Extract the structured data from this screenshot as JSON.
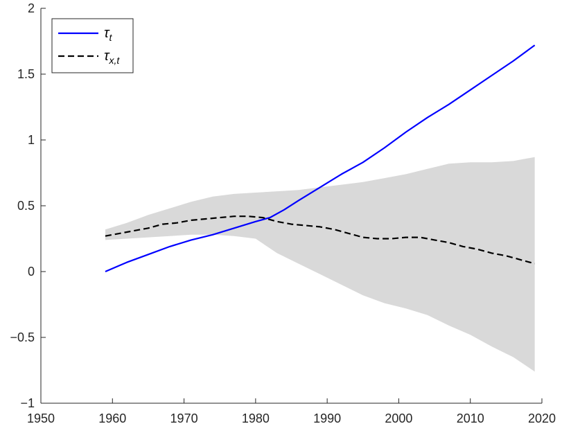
{
  "chart_data": {
    "type": "line",
    "title": "",
    "xlabel": "",
    "ylabel": "",
    "xlim": [
      1950,
      2020
    ],
    "ylim": [
      -1,
      2
    ],
    "grid": false,
    "legend_position": "top-left",
    "x_ticks": [
      1950,
      1960,
      1970,
      1980,
      1990,
      2000,
      2010,
      2020
    ],
    "x_tick_labels": [
      "1950",
      "1960",
      "1970",
      "1980",
      "1990",
      "2000",
      "2010",
      "2020"
    ],
    "y_ticks": [
      -1,
      -0.5,
      0,
      0.5,
      1,
      1.5,
      2
    ],
    "y_tick_labels": [
      "−1",
      "−0.5",
      "0",
      "0.5",
      "1",
      "1.5",
      "2"
    ],
    "series": [
      {
        "name": "τt",
        "name_main": "τ",
        "name_sub": "t",
        "color": "#0000ff",
        "style": "solid",
        "x": [
          1959,
          1962,
          1965,
          1968,
          1971,
          1974,
          1977,
          1980,
          1982,
          1984,
          1986,
          1989,
          1992,
          1995,
          1998,
          2001,
          2004,
          2007,
          2010,
          2013,
          2016,
          2019
        ],
        "values": [
          0.0,
          0.07,
          0.13,
          0.19,
          0.24,
          0.28,
          0.33,
          0.38,
          0.41,
          0.47,
          0.54,
          0.64,
          0.74,
          0.83,
          0.94,
          1.06,
          1.17,
          1.27,
          1.38,
          1.49,
          1.6,
          1.72
        ]
      },
      {
        "name": "τx,t",
        "name_main": "τ",
        "name_sub": "x,t",
        "color": "#000000",
        "style": "dashed",
        "x": [
          1959,
          1961,
          1963,
          1965,
          1967,
          1969,
          1971,
          1973,
          1975,
          1977,
          1979,
          1981,
          1983,
          1985,
          1987,
          1989,
          1991,
          1993,
          1995,
          1997,
          1999,
          2001,
          2003,
          2005,
          2007,
          2009,
          2011,
          2013,
          2015,
          2017,
          2019
        ],
        "values": [
          0.27,
          0.29,
          0.31,
          0.33,
          0.36,
          0.37,
          0.39,
          0.4,
          0.41,
          0.42,
          0.42,
          0.41,
          0.38,
          0.36,
          0.35,
          0.34,
          0.32,
          0.29,
          0.26,
          0.25,
          0.25,
          0.26,
          0.26,
          0.24,
          0.22,
          0.19,
          0.17,
          0.14,
          0.12,
          0.09,
          0.06
        ]
      }
    ],
    "band": {
      "color": "#d9d9d9",
      "x": [
        1959,
        1962,
        1965,
        1968,
        1971,
        1974,
        1977,
        1980,
        1983,
        1986,
        1989,
        1992,
        1995,
        1998,
        2001,
        2004,
        2007,
        2010,
        2013,
        2016,
        2019
      ],
      "upper": [
        0.32,
        0.37,
        0.43,
        0.48,
        0.53,
        0.57,
        0.59,
        0.6,
        0.61,
        0.62,
        0.64,
        0.66,
        0.68,
        0.71,
        0.74,
        0.78,
        0.82,
        0.83,
        0.83,
        0.84,
        0.87
      ],
      "lower": [
        0.24,
        0.25,
        0.26,
        0.27,
        0.28,
        0.28,
        0.27,
        0.25,
        0.14,
        0.06,
        -0.02,
        -0.1,
        -0.18,
        -0.24,
        -0.28,
        -0.33,
        -0.41,
        -0.48,
        -0.57,
        -0.65,
        -0.76
      ]
    }
  }
}
